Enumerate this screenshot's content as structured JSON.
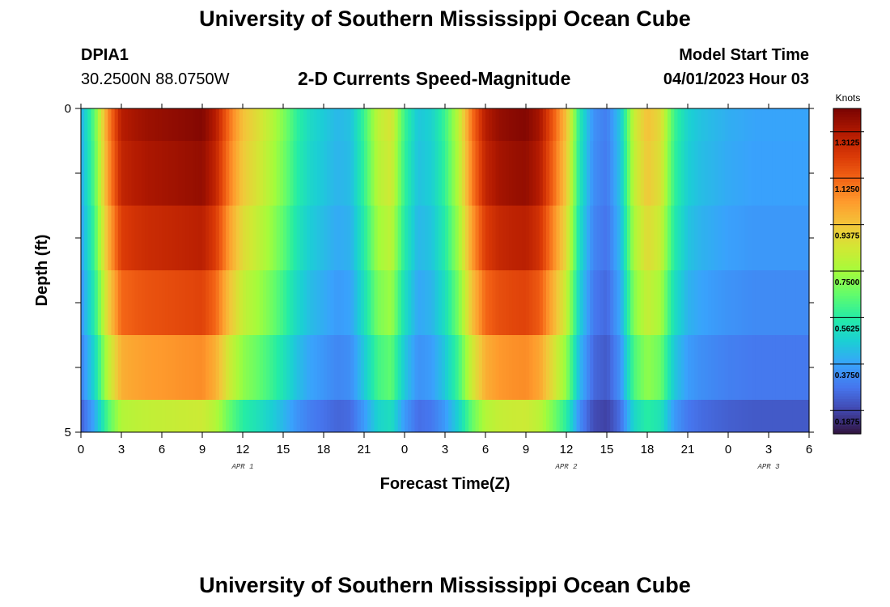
{
  "header": {
    "title": "University of Southern Mississippi Ocean Cube",
    "station": "DPIA1",
    "coordinates": "30.2500N  88.0750W",
    "chart_title": "2-D Currents Speed-Magnitude",
    "model_start_label": "Model Start Time",
    "model_start_value": "04/01/2023 Hour 03"
  },
  "footer": {
    "title": "University of Southern Mississippi Ocean Cube"
  },
  "chart_data": {
    "type": "heatmap",
    "title": "2-D Currents Speed-Magnitude",
    "xlabel": "Forecast Time(Z)",
    "ylabel": "Depth (ft)",
    "x_range": [
      0,
      54
    ],
    "y_range": [
      0,
      5
    ],
    "x_ticks": [
      0,
      3,
      6,
      9,
      12,
      15,
      18,
      21,
      24,
      27,
      30,
      33,
      36,
      39,
      42,
      45,
      48,
      51,
      54
    ],
    "x_tick_labels": [
      "0",
      "3",
      "6",
      "9",
      "12",
      "15",
      "18",
      "21",
      "0",
      "3",
      "6",
      "9",
      "12",
      "15",
      "18",
      "21",
      "0",
      "3",
      "6"
    ],
    "y_tick_labels": [
      "0",
      "5"
    ],
    "date_labels": [
      {
        "hour": 12,
        "text": "APR 1"
      },
      {
        "hour": 36,
        "text": "APR 2"
      },
      {
        "hour": 51,
        "text": "APR 3"
      }
    ],
    "colorbar": {
      "label": "Knots",
      "min": 0.09375,
      "max": 1.40625,
      "ticks": [
        "0.1875",
        "0.3750",
        "0.5625",
        "0.7500",
        "0.9375",
        "1.1250",
        "1.3125"
      ],
      "colors": [
        "#30123b",
        "#4145ab",
        "#4675ed",
        "#39a2fc",
        "#1bcfd4",
        "#24eca6",
        "#61fc6c",
        "#a4fc3b",
        "#d1e834",
        "#f3c63a",
        "#fe9b2d",
        "#f36315",
        "#d93806",
        "#b11901",
        "#7a0402"
      ]
    },
    "depth_layers": [
      "0-0.5",
      "0.5-1.5",
      "1.5-2.5",
      "2.5-3.5",
      "3.5-4.5",
      "4.5-5"
    ],
    "hours": [
      0,
      1,
      2,
      3,
      4,
      5,
      6,
      7,
      8,
      9,
      10,
      11,
      12,
      13,
      14,
      15,
      16,
      17,
      18,
      19,
      20,
      21,
      22,
      23,
      24,
      25,
      26,
      27,
      28,
      29,
      30,
      31,
      32,
      33,
      34,
      35,
      36,
      37,
      38,
      39,
      40,
      41,
      42,
      43,
      44,
      45,
      46,
      47,
      48,
      49,
      50,
      51,
      52,
      53,
      54
    ],
    "speed_knots_surface": [
      0.4,
      0.65,
      1.05,
      1.3,
      1.33,
      1.35,
      1.36,
      1.37,
      1.38,
      1.39,
      1.3,
      1.1,
      0.95,
      0.88,
      0.8,
      0.7,
      0.58,
      0.5,
      0.46,
      0.42,
      0.44,
      0.6,
      0.8,
      0.86,
      0.6,
      0.45,
      0.48,
      0.6,
      0.8,
      1.1,
      1.3,
      1.36,
      1.38,
      1.39,
      1.33,
      1.15,
      0.95,
      0.55,
      0.34,
      0.3,
      0.45,
      0.82,
      0.95,
      0.88,
      0.6,
      0.48,
      0.44,
      0.42,
      0.4,
      0.39,
      0.38,
      0.38,
      0.38,
      0.38,
      0.38
    ],
    "depth_factors": [
      1.0,
      0.98,
      0.93,
      0.86,
      0.76,
      0.6
    ]
  }
}
